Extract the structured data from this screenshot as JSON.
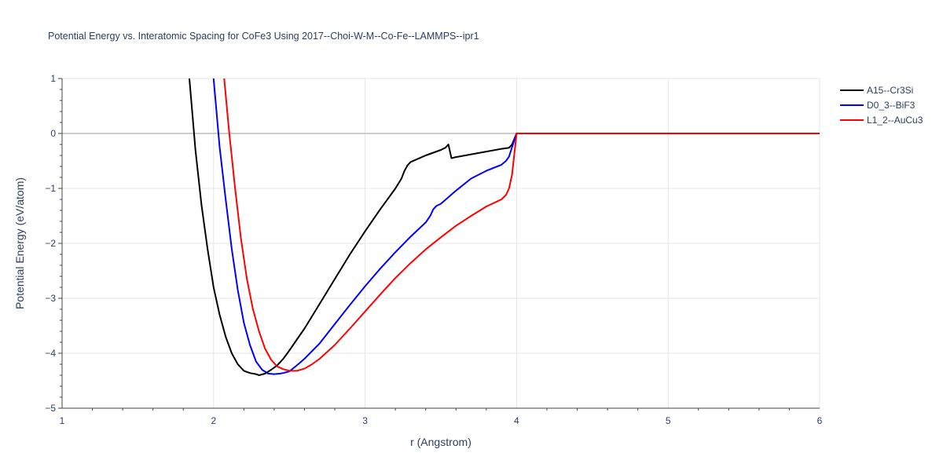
{
  "chart_data": {
    "type": "line",
    "title": "Potential Energy vs. Interatomic Spacing for CoFe3 Using 2017--Choi-W-M--Co-Fe--LAMMPS--ipr1",
    "xlabel": "r (Angstrom)",
    "ylabel": "Potential Energy (eV/atom)",
    "xlim": [
      1,
      6
    ],
    "ylim": [
      -5,
      1
    ],
    "xticks": [
      1,
      2,
      3,
      4,
      5,
      6
    ],
    "xtick_labels": [
      "1",
      "2",
      "3",
      "4",
      "5",
      "6"
    ],
    "yticks": [
      1,
      0,
      -1,
      -2,
      -3,
      -4,
      -5
    ],
    "ytick_labels": [
      "1",
      "0",
      "−1",
      "−2",
      "−3",
      "−4",
      "−5"
    ],
    "grid": true,
    "legend_position": "top-right",
    "series": [
      {
        "name": "A15--Cr3Si",
        "color": "#000000",
        "x": [
          1.84,
          1.88,
          1.92,
          1.96,
          2.0,
          2.04,
          2.08,
          2.12,
          2.16,
          2.2,
          2.24,
          2.28,
          2.3,
          2.34,
          2.38,
          2.42,
          2.46,
          2.5,
          2.55,
          2.6,
          2.7,
          2.8,
          2.9,
          3.0,
          3.1,
          3.2,
          3.24,
          3.26,
          3.28,
          3.3,
          3.35,
          3.4,
          3.45,
          3.5,
          3.53,
          3.55,
          3.57,
          3.6,
          3.7,
          3.8,
          3.9,
          3.95,
          3.97,
          4.0,
          4.2,
          4.5,
          5.0,
          5.5,
          6.0
        ],
        "y": [
          1.0,
          -0.3,
          -1.3,
          -2.1,
          -2.8,
          -3.3,
          -3.7,
          -4.0,
          -4.2,
          -4.32,
          -4.36,
          -4.38,
          -4.4,
          -4.37,
          -4.3,
          -4.22,
          -4.1,
          -3.95,
          -3.75,
          -3.55,
          -3.1,
          -2.65,
          -2.2,
          -1.78,
          -1.38,
          -1.0,
          -0.82,
          -0.68,
          -0.58,
          -0.52,
          -0.46,
          -0.4,
          -0.35,
          -0.3,
          -0.26,
          -0.2,
          -0.45,
          -0.43,
          -0.38,
          -0.33,
          -0.28,
          -0.26,
          -0.2,
          0.0,
          0.0,
          0.0,
          0.0,
          0.0,
          0.0
        ]
      },
      {
        "name": "D0_3--BiF3",
        "color": "#0000ff",
        "x": [
          2.0,
          2.04,
          2.08,
          2.12,
          2.16,
          2.2,
          2.24,
          2.28,
          2.32,
          2.36,
          2.4,
          2.44,
          2.46,
          2.5,
          2.55,
          2.6,
          2.7,
          2.8,
          2.9,
          3.0,
          3.1,
          3.2,
          3.3,
          3.4,
          3.43,
          3.45,
          3.47,
          3.5,
          3.6,
          3.7,
          3.8,
          3.9,
          3.93,
          3.95,
          3.97,
          4.0,
          4.5,
          5.0,
          5.5,
          6.0
        ],
        "y": [
          1.0,
          -0.25,
          -1.2,
          -2.1,
          -2.85,
          -3.45,
          -3.85,
          -4.15,
          -4.3,
          -4.37,
          -4.38,
          -4.37,
          -4.36,
          -4.33,
          -4.22,
          -4.1,
          -3.82,
          -3.47,
          -3.12,
          -2.78,
          -2.46,
          -2.16,
          -1.88,
          -1.62,
          -1.5,
          -1.38,
          -1.32,
          -1.28,
          -1.04,
          -0.82,
          -0.68,
          -0.57,
          -0.5,
          -0.42,
          -0.25,
          0.0,
          0.0,
          0.0,
          0.0,
          0.0
        ]
      },
      {
        "name": "L1_2--AuCu3",
        "color": "#ff0000",
        "x": [
          2.07,
          2.1,
          2.14,
          2.18,
          2.22,
          2.26,
          2.3,
          2.34,
          2.38,
          2.42,
          2.46,
          2.5,
          2.55,
          2.6,
          2.65,
          2.7,
          2.8,
          2.9,
          3.0,
          3.1,
          3.2,
          3.3,
          3.4,
          3.5,
          3.6,
          3.7,
          3.8,
          3.9,
          3.93,
          3.95,
          3.97,
          4.0,
          4.5,
          5.0,
          5.5,
          6.0
        ],
        "y": [
          1.0,
          0.1,
          -0.95,
          -1.9,
          -2.65,
          -3.2,
          -3.6,
          -3.92,
          -4.12,
          -4.24,
          -4.29,
          -4.32,
          -4.32,
          -4.28,
          -4.2,
          -4.1,
          -3.85,
          -3.55,
          -3.24,
          -2.93,
          -2.63,
          -2.36,
          -2.11,
          -1.89,
          -1.68,
          -1.5,
          -1.33,
          -1.2,
          -1.12,
          -1.0,
          -0.75,
          0.0,
          0.0,
          0.0,
          0.0,
          0.0
        ]
      }
    ]
  }
}
